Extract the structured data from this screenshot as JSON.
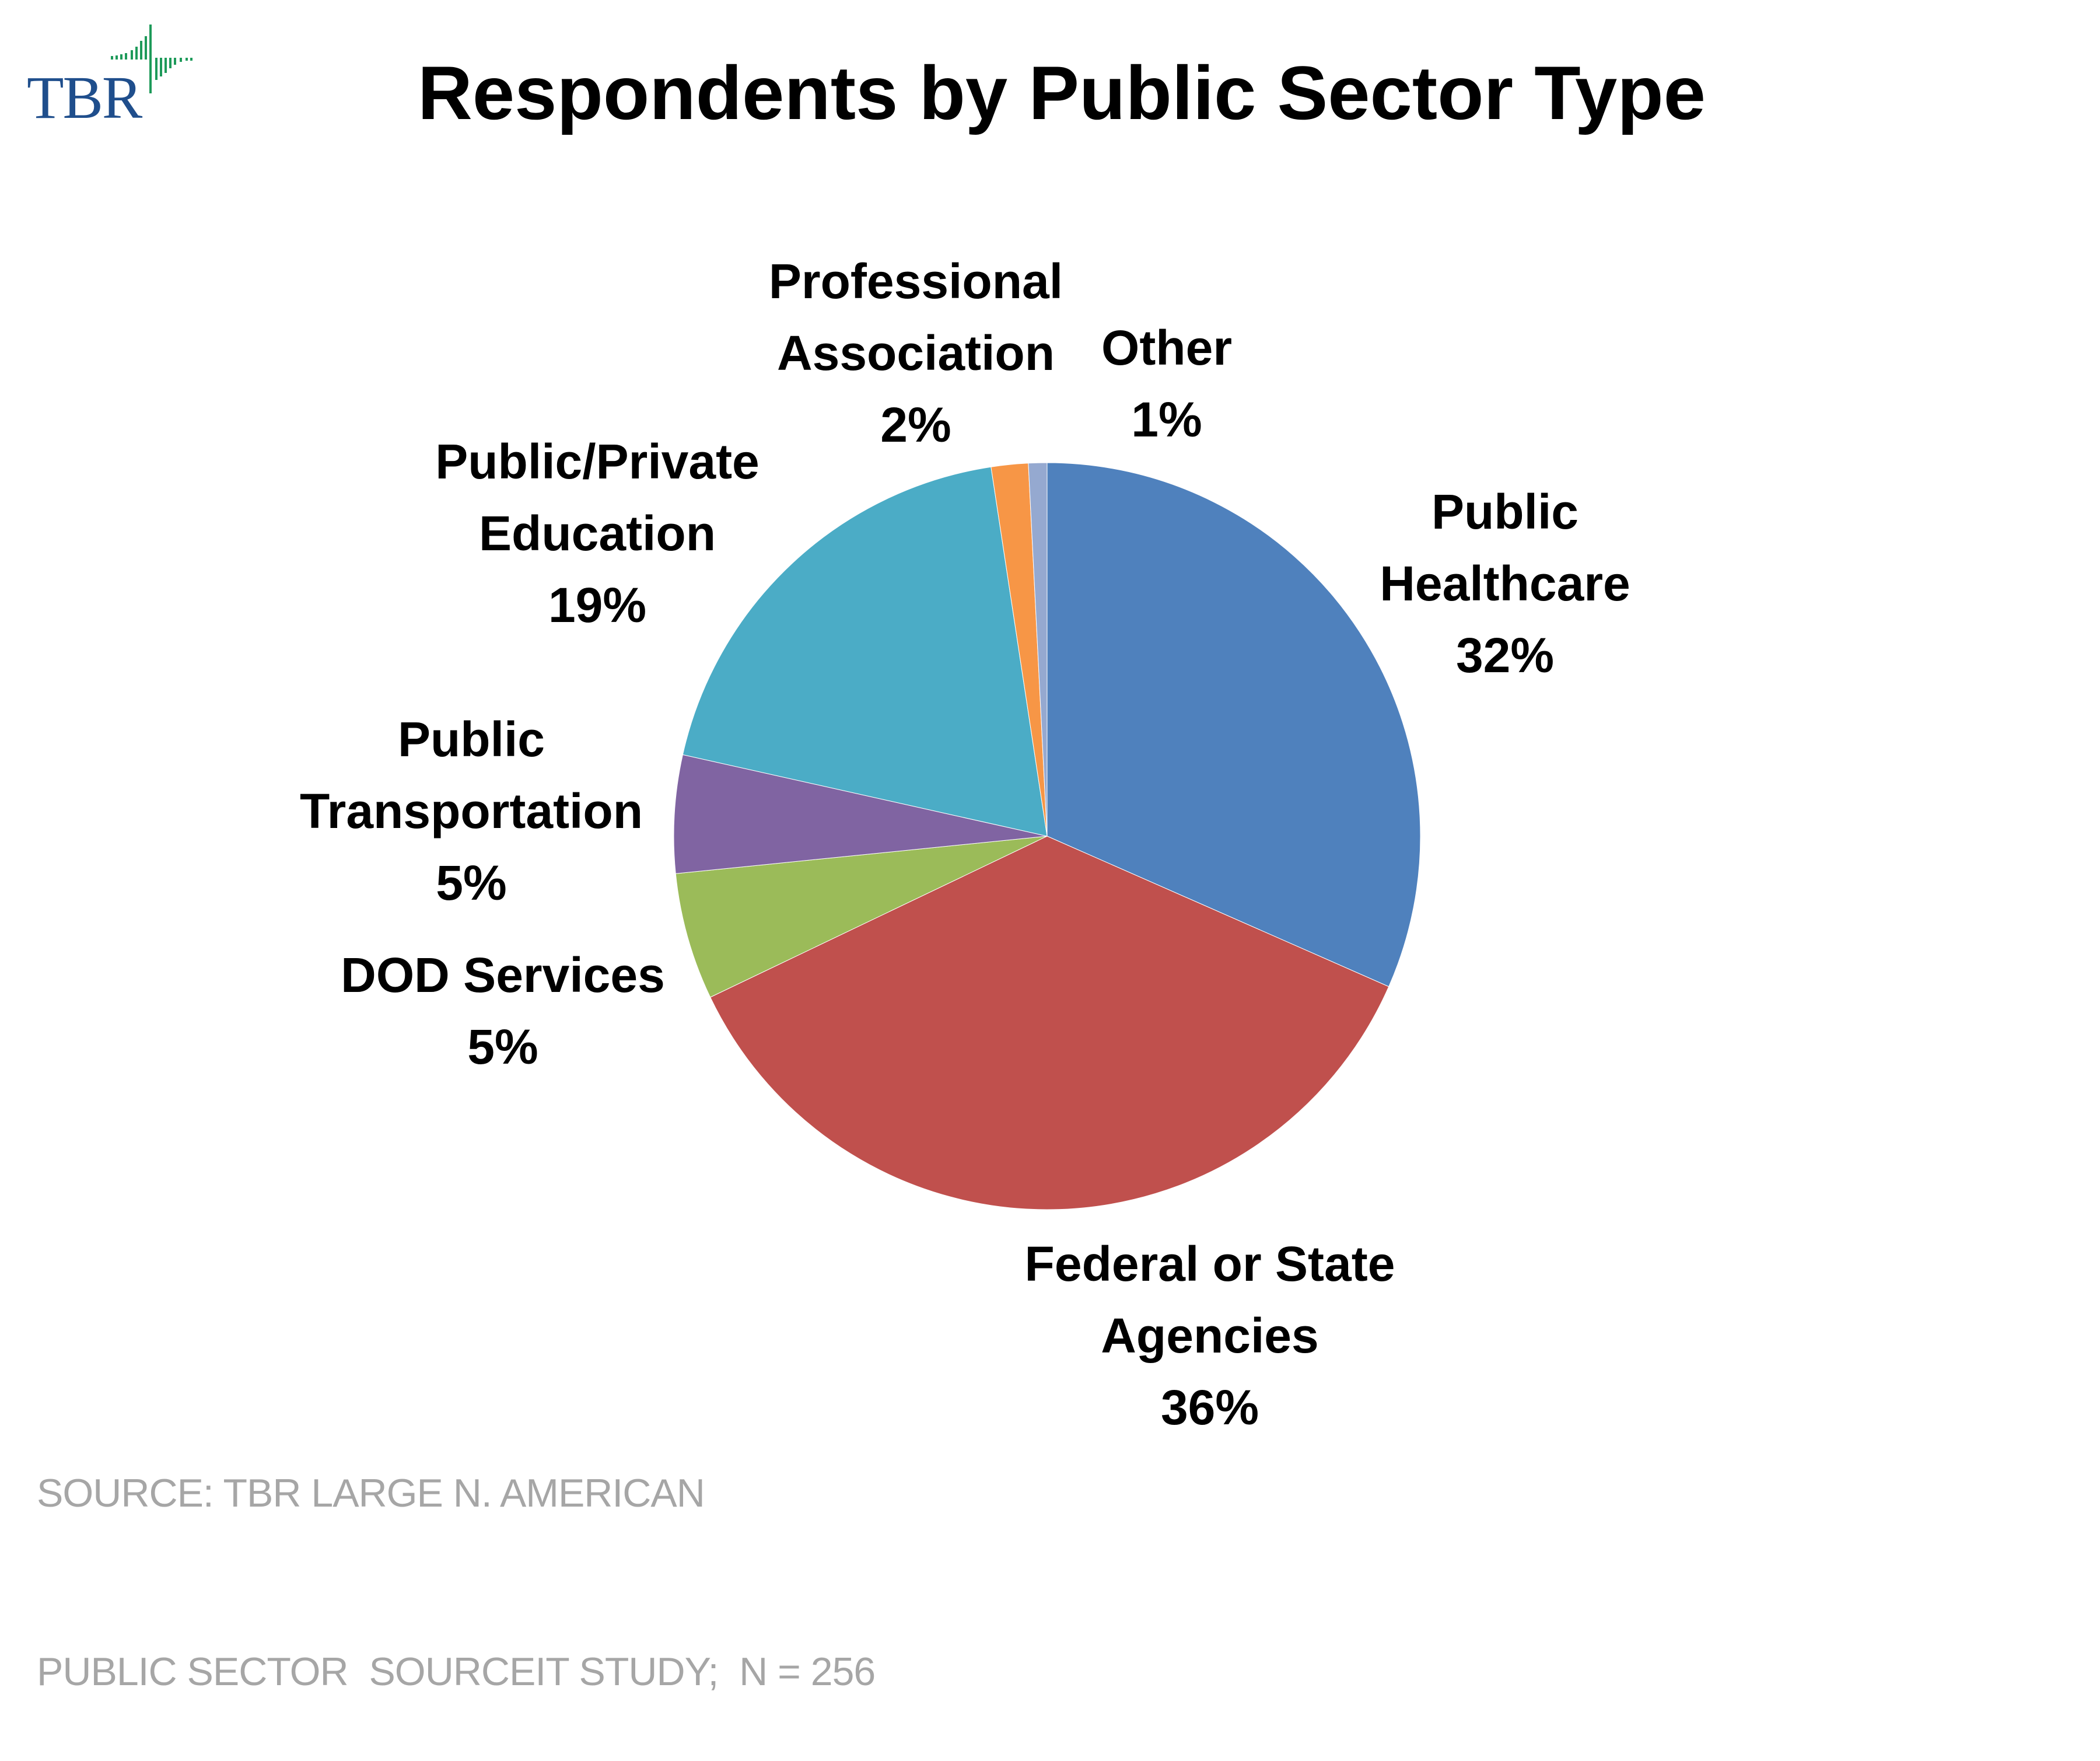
{
  "logo": {
    "text": "TBR",
    "text_color": "#1f4e8c",
    "mark_color": "#1e9a5a",
    "icon": "waveform-bars-icon"
  },
  "chart_data": {
    "type": "pie",
    "title": "Respondents by Public Sector Type",
    "start_angle": "12 o'clock",
    "direction": "clockwise",
    "legend": "none",
    "slices": [
      {
        "name": "Public Healthcare",
        "lines": [
          "Public",
          "Healthcare"
        ],
        "label": "32%",
        "value": 31.6,
        "color": "#4f81bd"
      },
      {
        "name": "Federal or State Agencies",
        "lines": [
          "Federal or State",
          "Agencies"
        ],
        "label": "36%",
        "value": 36.3,
        "color": "#c0504d"
      },
      {
        "name": "DOD Services",
        "lines": [
          "DOD Services"
        ],
        "label": "5%",
        "value": 5.5,
        "color": "#9bbb59"
      },
      {
        "name": "Public Transportation",
        "lines": [
          "Public",
          "Transportation"
        ],
        "label": "5%",
        "value": 5.1,
        "color": "#8064a2"
      },
      {
        "name": "Public/Private Education",
        "lines": [
          "Public/Private",
          "Education"
        ],
        "label": "19%",
        "value": 19.1,
        "color": "#4bacc6"
      },
      {
        "name": "Professional Association",
        "lines": [
          "Professional",
          "Association"
        ],
        "label": "2%",
        "value": 1.6,
        "color": "#f79646"
      },
      {
        "name": "Other",
        "lines": [
          "Other"
        ],
        "label": "1%",
        "value": 0.8,
        "color": "#95a9d0"
      }
    ]
  },
  "source": {
    "line1": "SOURCE: TBR LARGE N. AMERICAN",
    "line2": "PUBLIC SECTOR  SOURCEIT STUDY;  N = 256"
  }
}
